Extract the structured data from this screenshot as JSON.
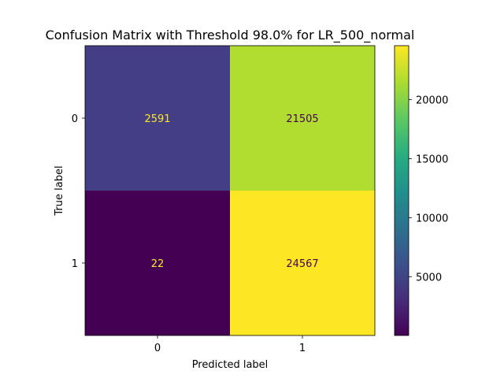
{
  "chart_data": {
    "type": "heatmap",
    "title": "Confusion Matrix with Threshold 98.0% for LR_500_normal",
    "xlabel": "Predicted label",
    "ylabel": "True label",
    "x_categories": [
      "0",
      "1"
    ],
    "y_categories": [
      "0",
      "1"
    ],
    "values": [
      [
        2591,
        21505
      ],
      [
        22,
        24567
      ]
    ],
    "value_labels": [
      [
        "2591",
        "21505"
      ],
      [
        "22",
        "24567"
      ]
    ],
    "colormap": "viridis",
    "colorbar": {
      "range": [
        22,
        24567
      ],
      "ticks": [
        5000,
        10000,
        15000,
        20000
      ],
      "tick_labels": [
        "5000",
        "10000",
        "15000",
        "20000"
      ]
    },
    "cell_colors": [
      [
        "#433e85",
        "#b0dd2f"
      ],
      [
        "#440154",
        "#fde725"
      ]
    ],
    "label_colors": [
      [
        "#fde725",
        "#440154"
      ],
      [
        "#fde725",
        "#440154"
      ]
    ],
    "grid": false
  }
}
